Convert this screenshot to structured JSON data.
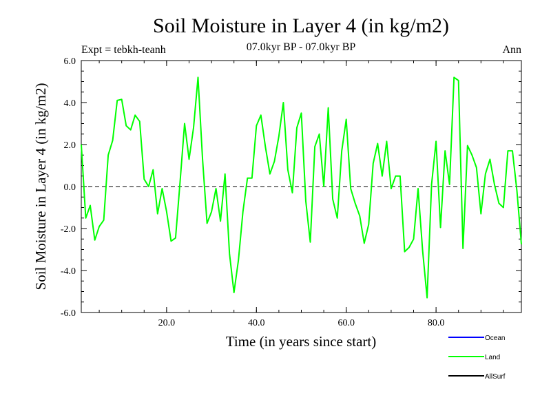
{
  "chart_data": {
    "type": "line",
    "title": "Soil Moisture in Layer 4 (in kg/m2)",
    "subtitle": "07.0kyr BP - 07.0kyr BP",
    "experiment": "Expt = tebkh-teanh",
    "season": "Ann",
    "xlabel": "Time (in years since start)",
    "ylabel": "Soil Moisture in Layer 4 (in kg/m2)",
    "xlim": [
      1,
      99
    ],
    "ylim": [
      -6.0,
      6.0
    ],
    "x_ticks": [
      20.0,
      40.0,
      60.0,
      80.0
    ],
    "x_tick_labels": [
      "20.0",
      "40.0",
      "60.0",
      "80.0"
    ],
    "y_ticks": [
      -6.0,
      -4.0,
      -2.0,
      0.0,
      2.0,
      4.0,
      6.0
    ],
    "y_tick_labels": [
      "-6.0",
      "-4.0",
      "-2.0",
      "0.0",
      "2.0",
      "4.0",
      "6.0"
    ],
    "zero_line": {
      "value": 0.0,
      "style": "dashed"
    },
    "legend": [
      {
        "name": "Ocean",
        "color": "#0000ff"
      },
      {
        "name": "Land",
        "color": "#00ff00"
      },
      {
        "name": "AllSurf",
        "color": "#000000"
      }
    ],
    "series": [
      {
        "name": "Land",
        "color": "#00ff00",
        "x": [
          1,
          2,
          3,
          4,
          5,
          6,
          7,
          8,
          9,
          10,
          11,
          12,
          13,
          14,
          15,
          16,
          17,
          18,
          19,
          20,
          21,
          22,
          23,
          24,
          25,
          26,
          27,
          28,
          29,
          30,
          31,
          32,
          33,
          34,
          35,
          36,
          37,
          38,
          39,
          40,
          41,
          42,
          43,
          44,
          45,
          46,
          47,
          48,
          49,
          50,
          51,
          52,
          53,
          54,
          55,
          56,
          57,
          58,
          59,
          60,
          61,
          62,
          63,
          64,
          65,
          66,
          67,
          68,
          69,
          70,
          71,
          72,
          73,
          74,
          75,
          76,
          77,
          78,
          79,
          80,
          81,
          82,
          83,
          84,
          85,
          86,
          87,
          88,
          89,
          90,
          91,
          92,
          93,
          94,
          95,
          96,
          97,
          98,
          99
        ],
        "values": [
          2.0,
          -1.5,
          -0.9,
          -2.55,
          -1.9,
          -1.6,
          1.5,
          2.2,
          4.1,
          4.15,
          2.9,
          2.7,
          3.4,
          3.1,
          0.35,
          0.0,
          0.8,
          -1.3,
          -0.1,
          -1.2,
          -2.6,
          -2.45,
          0.2,
          3.0,
          1.3,
          2.8,
          5.2,
          1.3,
          -1.75,
          -1.2,
          -0.1,
          -1.65,
          0.6,
          -3.2,
          -5.05,
          -3.5,
          -1.2,
          0.4,
          0.4,
          2.9,
          3.4,
          1.9,
          0.6,
          1.2,
          2.4,
          4.0,
          0.8,
          -0.3,
          2.8,
          3.5,
          -0.7,
          -2.65,
          1.9,
          2.5,
          0.0,
          3.75,
          -0.6,
          -1.5,
          1.7,
          3.2,
          -0.1,
          -0.8,
          -1.4,
          -2.7,
          -1.8,
          1.1,
          2.05,
          0.5,
          2.15,
          -0.1,
          0.5,
          0.5,
          -3.1,
          -2.9,
          -2.5,
          -0.1,
          -3.05,
          -5.3,
          0.1,
          2.15,
          -1.95,
          1.7,
          0.1,
          5.2,
          5.05,
          -2.95,
          1.95,
          1.5,
          0.9,
          -1.3,
          0.6,
          1.3,
          0.1,
          -0.8,
          -1.0,
          1.7,
          1.7,
          -0.2,
          -2.75
        ]
      }
    ]
  }
}
